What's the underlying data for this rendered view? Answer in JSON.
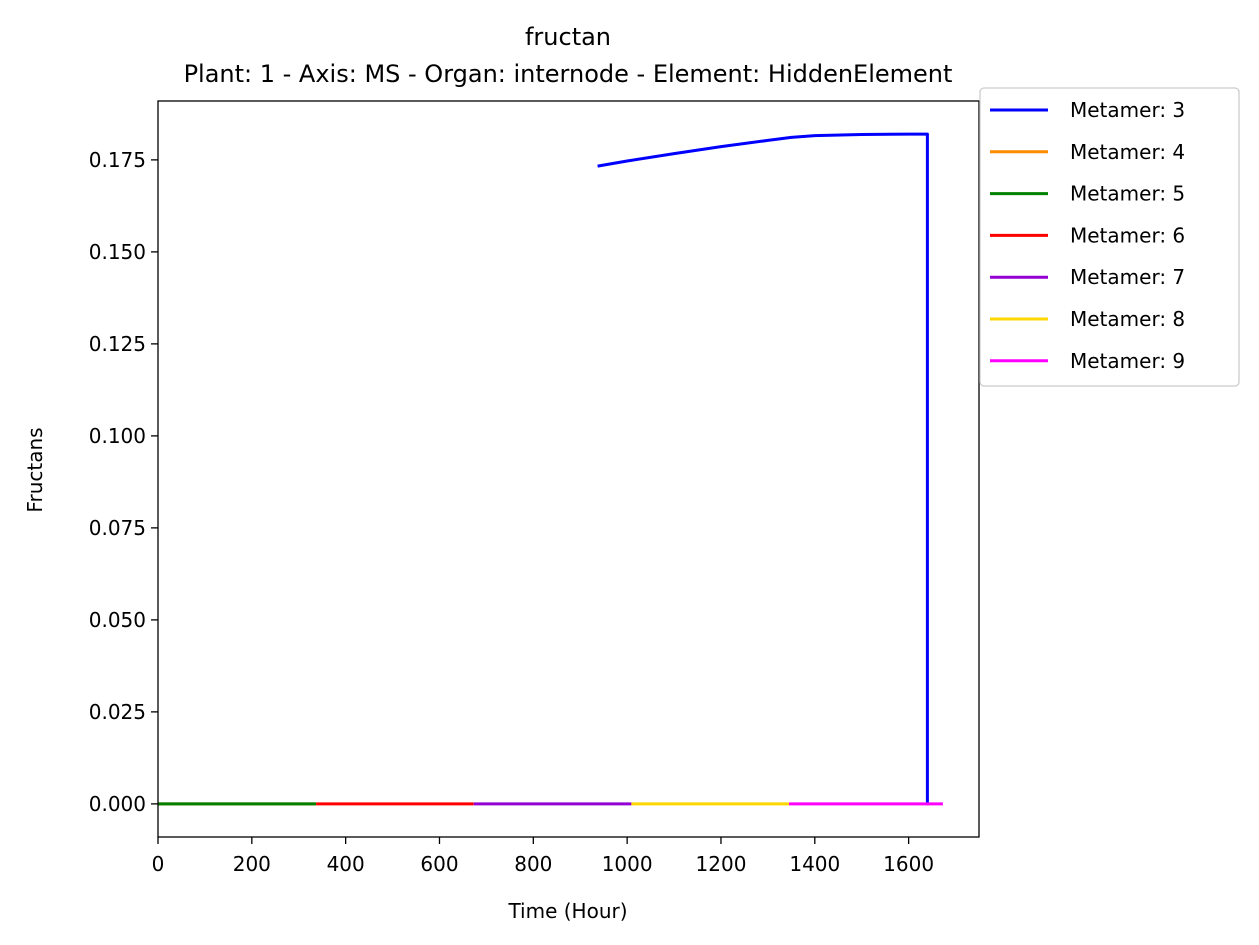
{
  "chart_data": {
    "type": "line",
    "title": "fructan",
    "subtitle": "Plant: 1 - Axis: MS - Organ: internode - Element: HiddenElement",
    "xlabel": "Time (Hour)",
    "ylabel": "Fructans",
    "xlim": [
      0,
      1750
    ],
    "ylim": [
      -0.009,
      0.191
    ],
    "xticks": [
      0,
      200,
      400,
      600,
      800,
      1000,
      1200,
      1400,
      1600
    ],
    "xtick_labels": [
      "0",
      "200",
      "400",
      "600",
      "800",
      "1000",
      "1200",
      "1400",
      "1600"
    ],
    "yticks": [
      0.0,
      0.025,
      0.05,
      0.075,
      0.1,
      0.125,
      0.15,
      0.175
    ],
    "ytick_labels": [
      "0.000",
      "0.025",
      "0.050",
      "0.075",
      "0.100",
      "0.125",
      "0.150",
      "0.175"
    ],
    "grid": false,
    "legend_position": "outside top-right",
    "series": [
      {
        "name": "Metamer: 3",
        "color": "#0000ff",
        "x": [
          937,
          1000,
          1100,
          1200,
          1300,
          1350,
          1400,
          1500,
          1600,
          1640,
          1640,
          1641
        ],
        "y": [
          0.1733,
          0.1747,
          0.1767,
          0.1786,
          0.1803,
          0.1811,
          0.1816,
          0.1819,
          0.182,
          0.182,
          0.0,
          0.0
        ]
      },
      {
        "name": "Metamer: 4",
        "color": "#ff8c00",
        "x": [
          0,
          337
        ],
        "y": [
          0.0,
          0.0
        ]
      },
      {
        "name": "Metamer: 5",
        "color": "#008000",
        "x": [
          0,
          337
        ],
        "y": [
          0.0,
          0.0
        ]
      },
      {
        "name": "Metamer: 6",
        "color": "#ff0000",
        "x": [
          337,
          673
        ],
        "y": [
          0.0,
          0.0
        ]
      },
      {
        "name": "Metamer: 7",
        "color": "#9400d3",
        "x": [
          673,
          1009
        ],
        "y": [
          0.0,
          0.0
        ]
      },
      {
        "name": "Metamer: 8",
        "color": "#ffd700",
        "x": [
          1009,
          1345
        ],
        "y": [
          0.0,
          0.0
        ]
      },
      {
        "name": "Metamer: 9",
        "color": "#ff00ff",
        "x": [
          1345,
          1673
        ],
        "y": [
          0.0,
          0.0
        ]
      }
    ]
  }
}
